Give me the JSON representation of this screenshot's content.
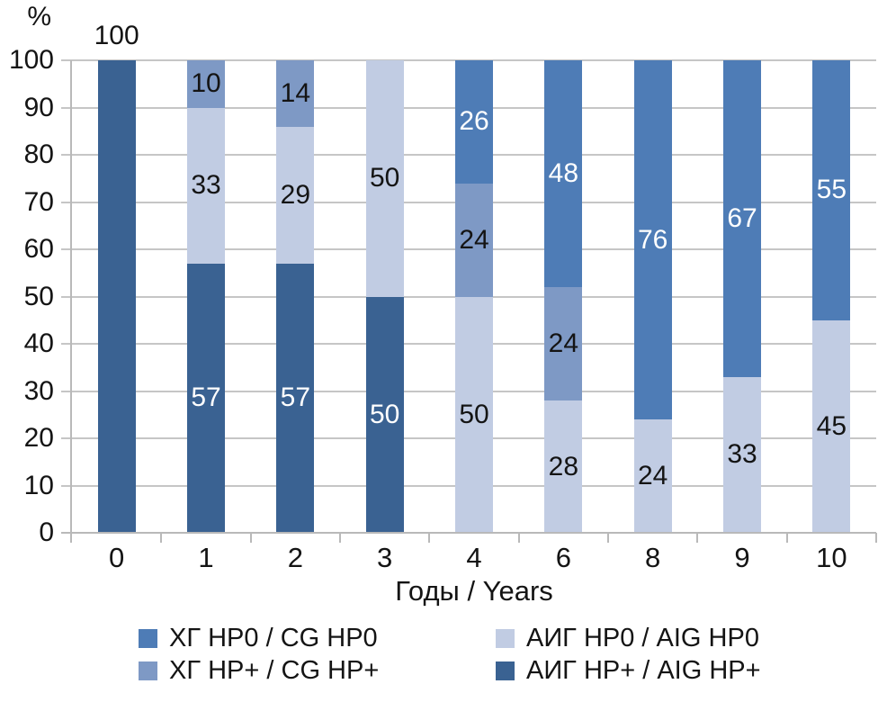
{
  "chart_data": {
    "type": "bar",
    "stacked": true,
    "title": "",
    "xlabel": "Годы / Years",
    "ylabel": "%",
    "ylim": [
      0,
      100
    ],
    "ytick_step": 10,
    "grid": true,
    "legend_position": "bottom",
    "categories": [
      "0",
      "1",
      "2",
      "3",
      "4",
      "6",
      "8",
      "9",
      "10"
    ],
    "series": [
      {
        "key": "aig-hpp",
        "name": "АИГ НР+ / AIG HP+",
        "color": "#3A6292",
        "label_color": "#FFFFFF",
        "values": [
          100,
          57,
          57,
          50,
          0,
          0,
          0,
          0,
          0
        ]
      },
      {
        "key": "aig-hp0",
        "name": "АИГ НР0 / AIG HP0",
        "color": "#C1CCE3",
        "label_color": "#141414",
        "values": [
          0,
          33,
          29,
          50,
          50,
          28,
          24,
          33,
          45
        ]
      },
      {
        "key": "cg-hpp",
        "name": "ХГ НР+ / CG HP+",
        "color": "#7E99C5",
        "label_color": "#141414",
        "values": [
          0,
          10,
          14,
          0,
          24,
          24,
          0,
          0,
          0
        ]
      },
      {
        "key": "cg-hp0",
        "name": "ХГ НР0 / CG HP0",
        "color": "#4E7CB6",
        "label_color": "#FFFFFF",
        "values": [
          0,
          0,
          0,
          0,
          26,
          48,
          76,
          67,
          55
        ]
      }
    ]
  },
  "axes": {
    "y_ticks": [
      "0",
      "10",
      "20",
      "30",
      "40",
      "50",
      "60",
      "70",
      "80",
      "90",
      "100"
    ],
    "x_ticks": [
      "0",
      "1",
      "2",
      "3",
      "4",
      "6",
      "8",
      "9",
      "10"
    ],
    "y_unit": "%",
    "x_title": "Годы / Years"
  },
  "legend": {
    "items": [
      {
        "key": "cg-hp0",
        "label": "ХГ НР0 / CG HP0",
        "color": "#4E7CB6"
      },
      {
        "key": "cg-hpp",
        "label": "ХГ НР+ / CG HP+",
        "color": "#7E99C5"
      },
      {
        "key": "aig-hp0",
        "label": "АИГ НР0 / AIG HP0",
        "color": "#C1CCE3"
      },
      {
        "key": "aig-hpp",
        "label": "АИГ НР+ / AIG HP+",
        "color": "#3A6292"
      }
    ]
  }
}
